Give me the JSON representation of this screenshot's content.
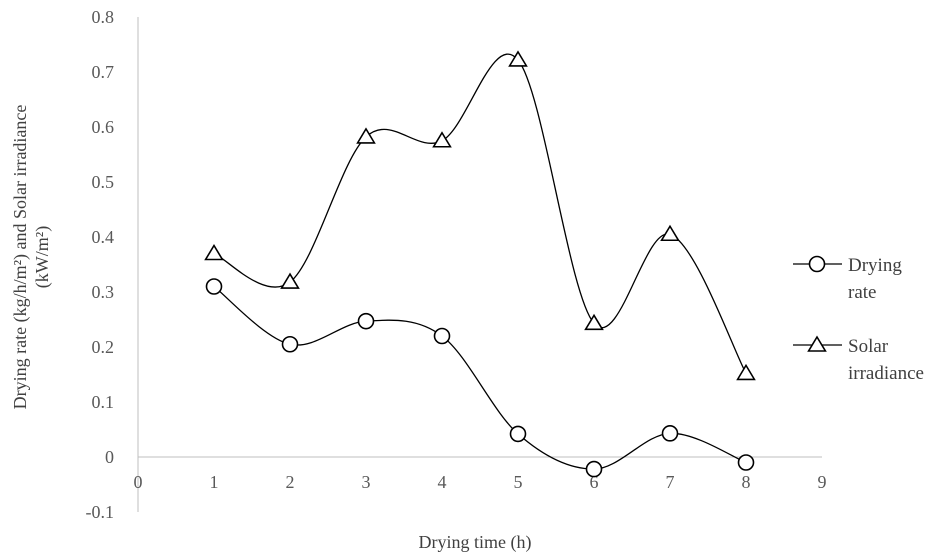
{
  "chart_data": {
    "type": "line",
    "smooth": true,
    "xlabel": "Drying time (h)",
    "ylabel_lines": [
      "Drying rate (kg/h/m²) and Solar irradiance",
      "(kW/m²)"
    ],
    "xlim": [
      0,
      9
    ],
    "ylim": [
      -0.1,
      0.8
    ],
    "x_ticks": [
      "0",
      "1",
      "2",
      "3",
      "4",
      "5",
      "6",
      "7",
      "8",
      "9"
    ],
    "y_ticks": [
      "-0.1",
      "0",
      "0.1",
      "0.2",
      "0.3",
      "0.4",
      "0.5",
      "0.6",
      "0.7",
      "0.8"
    ],
    "x": [
      1,
      2,
      3,
      4,
      5,
      6,
      7,
      8
    ],
    "series": [
      {
        "name": "Drying rate",
        "marker": "circle",
        "values": [
          0.31,
          0.205,
          0.247,
          0.22,
          0.042,
          -0.022,
          0.043,
          -0.01
        ]
      },
      {
        "name": "Solar irradiance",
        "marker": "triangle",
        "values": [
          0.37,
          0.318,
          0.582,
          0.575,
          0.722,
          0.243,
          0.405,
          0.152
        ]
      }
    ],
    "legend": {
      "position": "right",
      "entries": [
        {
          "lines": [
            "Drying",
            "rate"
          ],
          "marker": "circle"
        },
        {
          "lines": [
            "Solar",
            "irradiance"
          ],
          "marker": "triangle"
        }
      ]
    },
    "grid": false,
    "colors": {
      "line": "#000000",
      "axis": "#bfbfbf",
      "text": "#595959"
    }
  }
}
